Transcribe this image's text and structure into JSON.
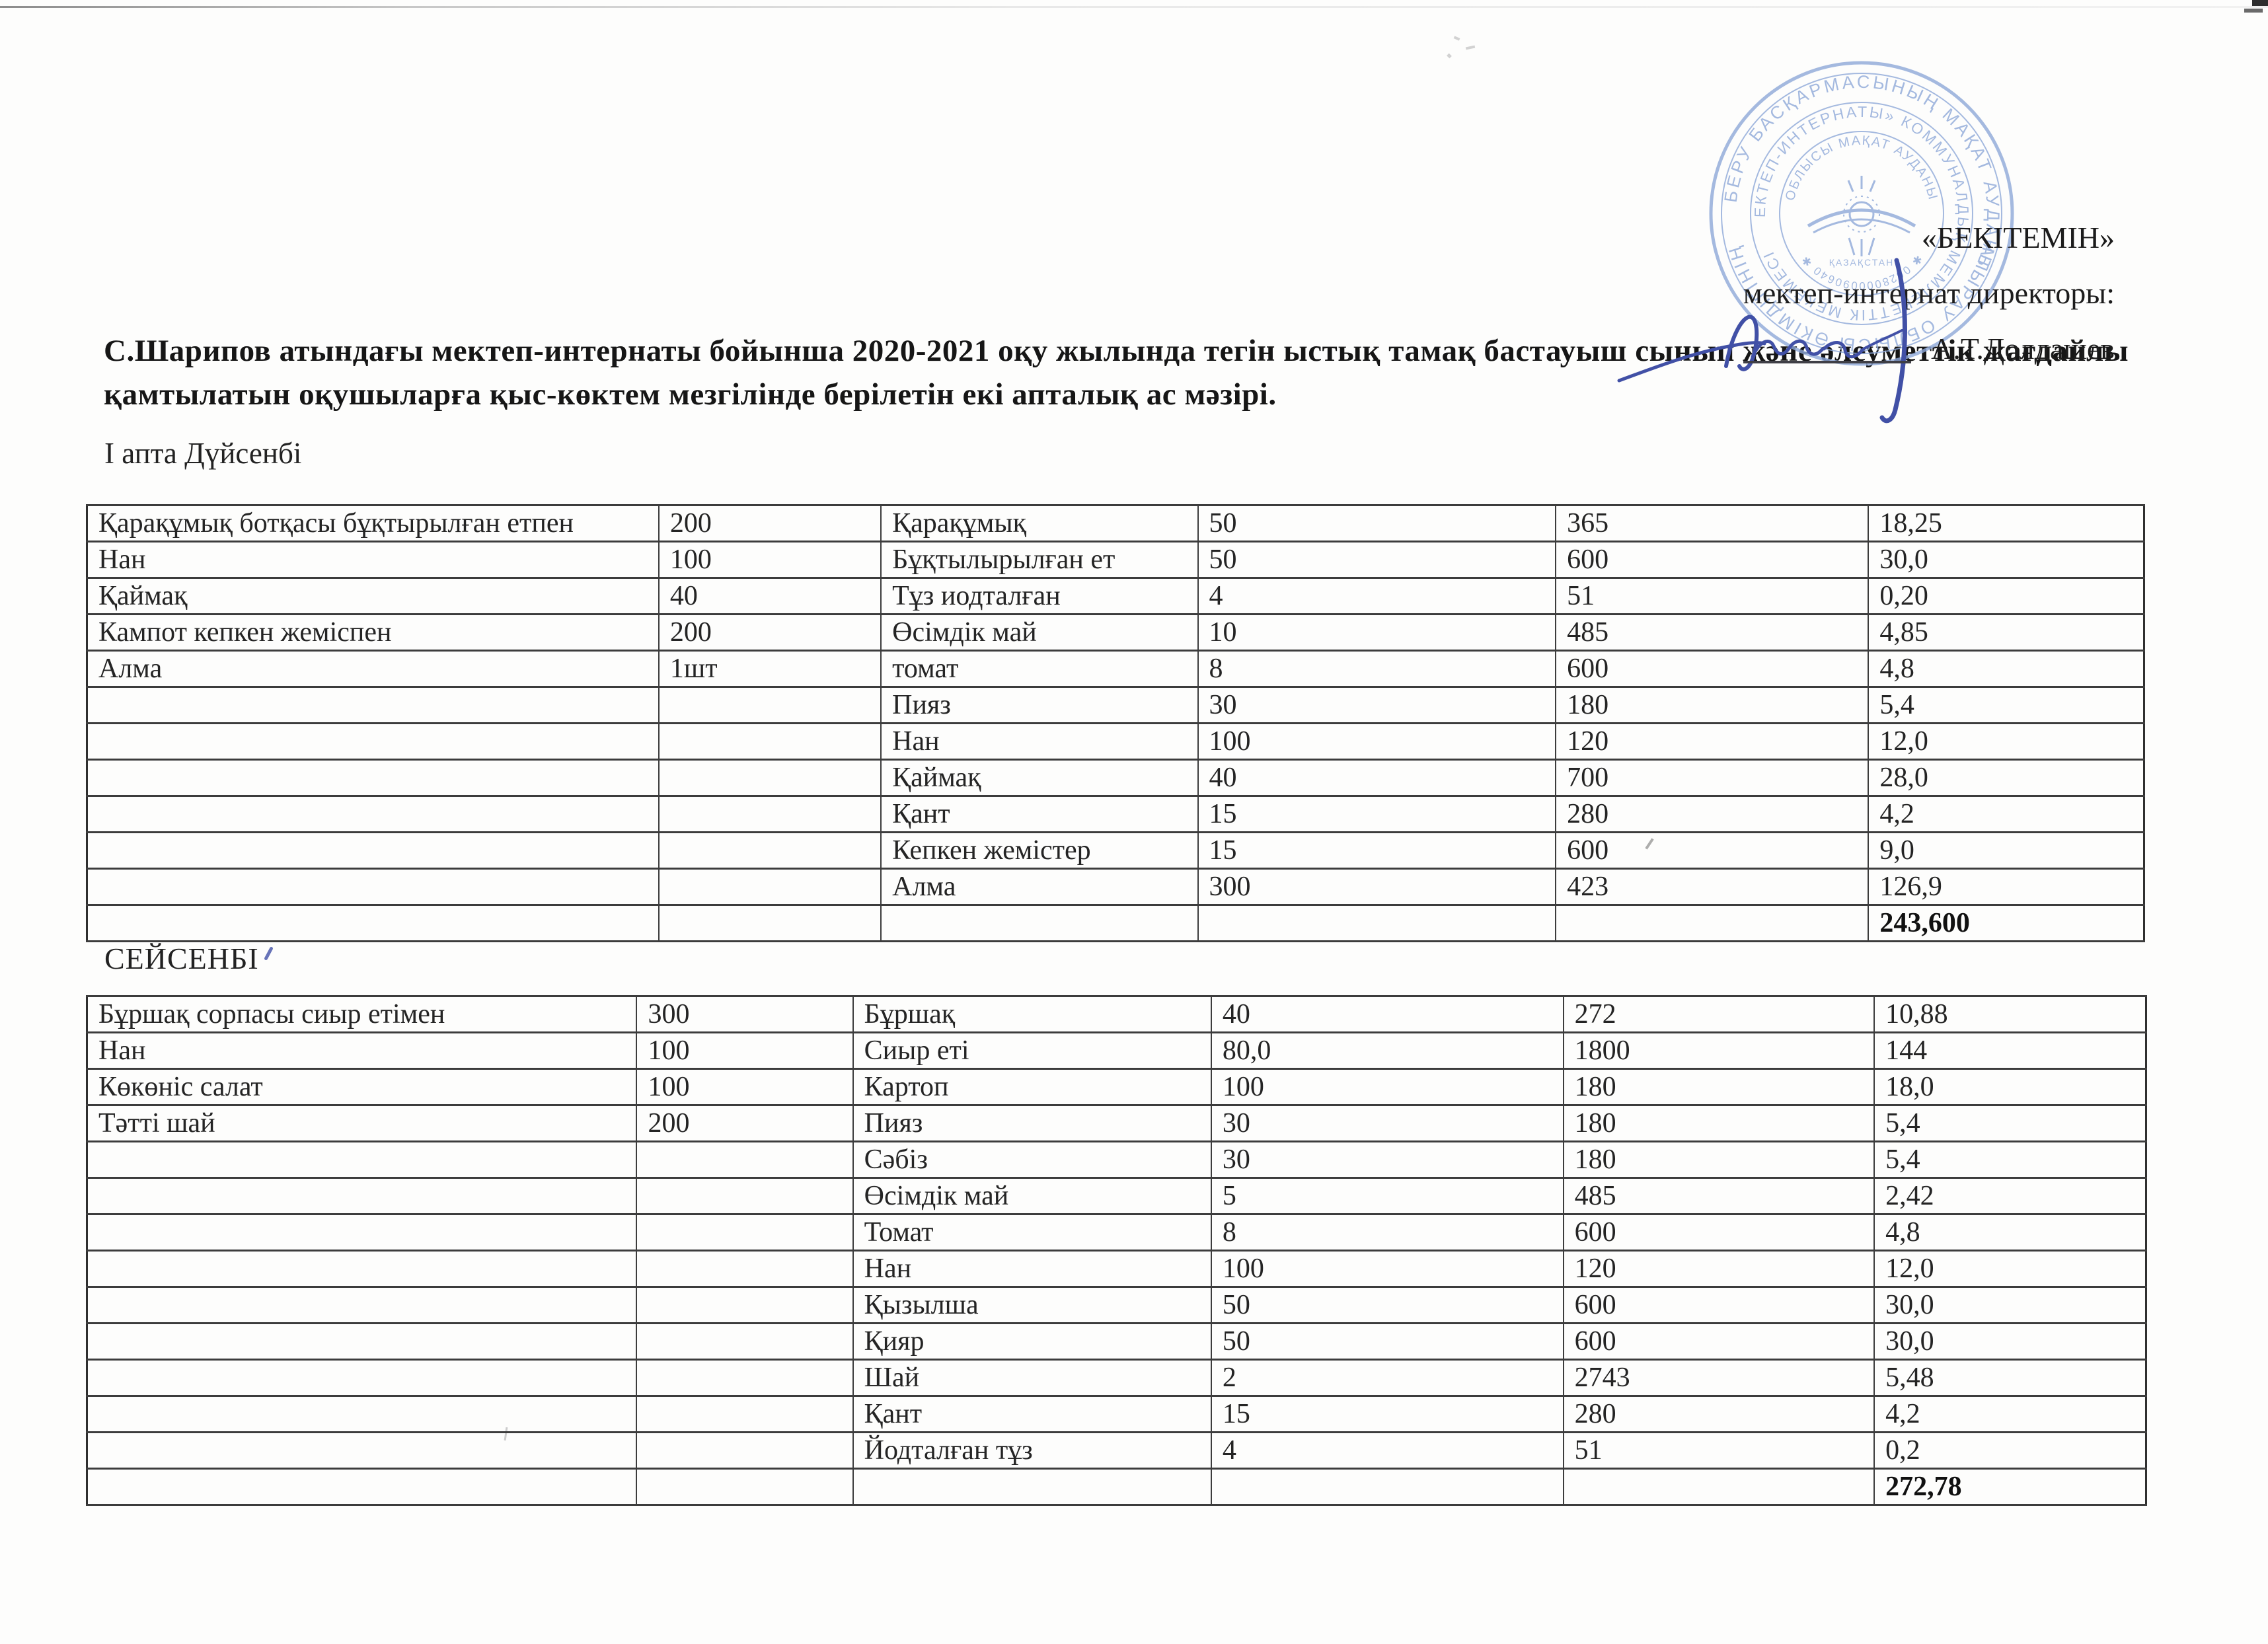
{
  "approval": {
    "approve_label": "«БЕКІТЕМІН»",
    "director_label": "мектеп-интернат директоры:",
    "director_name": "А.Т.Долдашев"
  },
  "stamp": {
    "ring1_top": "БІЛІМ БЕРУ БАСҚАРМАСЫНЫҢ МАҚАТ АУДАНЫ",
    "ring1_bottom": "АТЫРАУ ОБЛЫСЫ ӘКІМДІГІНІҢ",
    "ring2_top": "«МЕКТЕП-ИНТЕРНАТЫ» КОММУНАЛДЫҚ",
    "ring2_bottom": "МЕМЛЕКЕТТІК МЕКЕМЕСІ",
    "ring3_top": "ОБЛЫСЫ МАҚАТ АУДАНЫ",
    "serial": "✱ 0628000090640 ✱",
    "emblem_label": "ҚАЗАҚСТАН"
  },
  "title": {
    "line1": "С.Шарипов атындағы мектеп-интернаты бойынша 2020-2021 оқу жылында тегін ыстық тамақ бастауыш сынып және әлеуметтік жағдайлы",
    "line2": "қамтылатын оқушыларға қыс-көктем мезгілінде берілетін екі апталық ас мәзірі."
  },
  "labels": {
    "week1_monday": "І апта Дүйсенбі",
    "tuesday": "СЕЙСЕНБІ"
  },
  "monday_table": {
    "rows": [
      [
        "Қарақұмық ботқасы бұқтырылған етпен",
        "200",
        "Қарақұмық",
        "50",
        "365",
        "18,25"
      ],
      [
        "Нан",
        "100",
        "Бұқтылырылған ет",
        "50",
        "600",
        "30,0"
      ],
      [
        "Қаймақ",
        "40",
        "Тұз иодталған",
        "4",
        "51",
        "0,20"
      ],
      [
        "Кампот кепкен жеміспен",
        "200",
        "Өсімдік май",
        "10",
        "485",
        "4,85"
      ],
      [
        "Алма",
        "1шт",
        "томат",
        "8",
        "600",
        "4,8"
      ],
      [
        "",
        "",
        "Пияз",
        "30",
        "180",
        "5,4"
      ],
      [
        "",
        "",
        "Нан",
        "100",
        "120",
        "12,0"
      ],
      [
        "",
        "",
        "Қаймақ",
        "40",
        "700",
        "28,0"
      ],
      [
        "",
        "",
        "Қант",
        "15",
        "280",
        "4,2"
      ],
      [
        "",
        "",
        "Кепкен жемістер",
        "15",
        "600",
        "9,0"
      ],
      [
        "",
        "",
        "Алма",
        "300",
        "423",
        "126,9"
      ],
      [
        "",
        "",
        "",
        "",
        "",
        "243,600"
      ]
    ]
  },
  "tuesday_table": {
    "rows": [
      [
        "Бұршақ сорпасы сиыр етімен",
        "300",
        "Бұршақ",
        "40",
        "272",
        "10,88"
      ],
      [
        "Нан",
        "100",
        "Сиыр еті",
        "80,0",
        "1800",
        "144"
      ],
      [
        "Көкөніс салат",
        "100",
        "Картоп",
        "100",
        "180",
        "18,0"
      ],
      [
        "Тәтті шай",
        "200",
        "Пияз",
        "30",
        "180",
        "5,4"
      ],
      [
        "",
        "",
        "Сәбіз",
        "30",
        "180",
        "5,4"
      ],
      [
        "",
        "",
        "Өсімдік май",
        "5",
        "485",
        "2,42"
      ],
      [
        "",
        "",
        "Томат",
        "8",
        "600",
        "4,8"
      ],
      [
        "",
        "",
        "Нан",
        "100",
        "120",
        "12,0"
      ],
      [
        "",
        "",
        "Қызылша",
        "50",
        "600",
        "30,0"
      ],
      [
        "",
        "",
        "Қияр",
        "50",
        "600",
        "30,0"
      ],
      [
        "",
        "",
        "Шай",
        "2",
        "2743",
        "5,48"
      ],
      [
        "",
        "",
        "Қант",
        "15",
        "280",
        "4,2"
      ],
      [
        "",
        "",
        "Йодталған тұз",
        "4",
        "51",
        "0,2"
      ],
      [
        "",
        "",
        "",
        "",
        "",
        "272,78"
      ]
    ]
  },
  "colors": {
    "stamp_blue": "#8fa9d9",
    "signature_blue": "#4150a6",
    "ink": "#1f1f1f",
    "table_border": "#3c3c3c"
  }
}
